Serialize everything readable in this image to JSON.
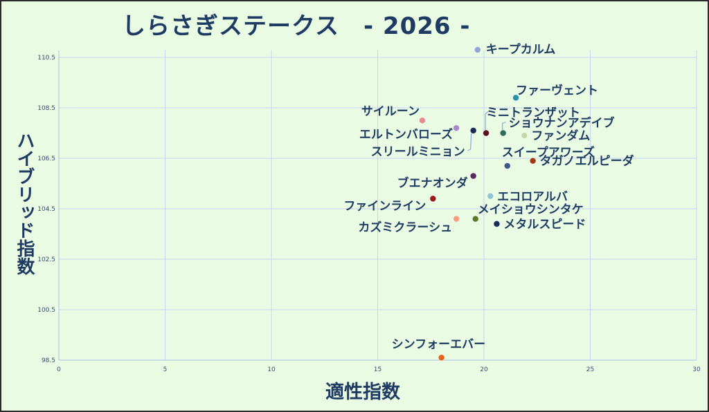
{
  "chart_data": {
    "type": "scatter",
    "title": "しらさぎステークス　- 2026 -",
    "xlabel": "適性指数",
    "ylabel": "ハイブリッド指数",
    "xlim": [
      0,
      30
    ],
    "ylim": [
      98.5,
      110.5
    ],
    "xticks": [
      "0",
      "5",
      "10",
      "15",
      "20",
      "25",
      "30"
    ],
    "yticks": [
      "98.5",
      "100.5",
      "102.5",
      "104.5",
      "106.5",
      "108.5",
      "110.5"
    ],
    "grid": true,
    "legend": "none",
    "points": [
      {
        "name": "キープカルム",
        "x": 19.7,
        "y": 110.8,
        "color": "#8ea5d6"
      },
      {
        "name": "ファーヴェント",
        "x": 21.5,
        "y": 108.9,
        "color": "#2a90a8"
      },
      {
        "name": "サイルーン",
        "x": 17.1,
        "y": 108.0,
        "color": "#e68a8a"
      },
      {
        "name": "エルトンバローズ",
        "x": 18.7,
        "y": 107.7,
        "color": "#a58ac5"
      },
      {
        "name": "ミニトランザット",
        "x": 20.1,
        "y": 107.5,
        "color": "#5a0e1e"
      },
      {
        "name": "スリールミニョン",
        "x": 19.5,
        "y": 107.6,
        "color": "#1e2a4f"
      },
      {
        "name": "ショウナンアデイブ",
        "x": 20.9,
        "y": 107.5,
        "color": "#2d6b5a"
      },
      {
        "name": "ファンダム",
        "x": 21.9,
        "y": 107.4,
        "color": "#c8d6a4"
      },
      {
        "name": "スイープアワーズ",
        "x": 21.1,
        "y": 106.2,
        "color": "#3d5a8f"
      },
      {
        "name": "タガノエルピーダ",
        "x": 22.3,
        "y": 106.4,
        "color": "#a23a10"
      },
      {
        "name": "ブエナオンダ",
        "x": 19.5,
        "y": 105.8,
        "color": "#5a2a5e"
      },
      {
        "name": "エコロアルバ",
        "x": 20.3,
        "y": 105.0,
        "color": "#8ec6d6"
      },
      {
        "name": "ファインライン",
        "x": 17.6,
        "y": 104.9,
        "color": "#9a1a1a"
      },
      {
        "name": "メイショウシンタケ",
        "x": 19.6,
        "y": 104.1,
        "color": "#5a7a2a"
      },
      {
        "name": "カズミクラーシュ",
        "x": 18.7,
        "y": 104.1,
        "color": "#f0a080"
      },
      {
        "name": "メタルスピード",
        "x": 20.6,
        "y": 103.9,
        "color": "#1a2a5a"
      },
      {
        "name": "シンフォーエバー",
        "x": 18.0,
        "y": 98.6,
        "color": "#e8641a"
      }
    ]
  }
}
